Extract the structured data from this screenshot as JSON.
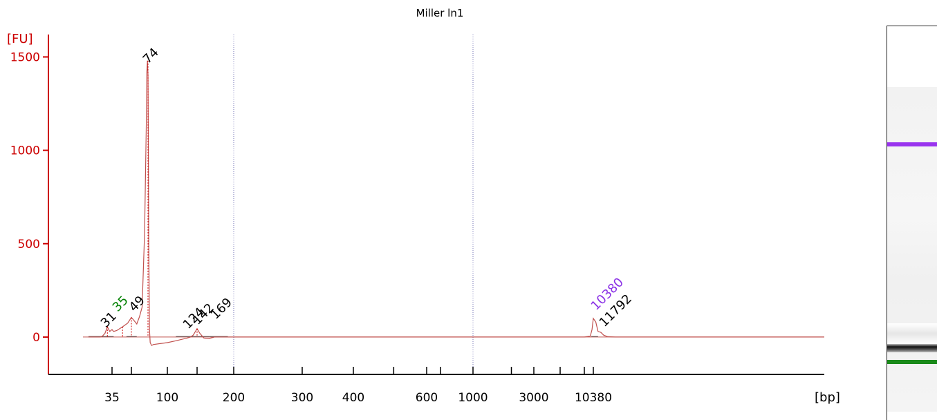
{
  "chart_data": {
    "type": "line",
    "title": "Miller ln1",
    "ylabel": "[FU]",
    "xlabel": "[bp]",
    "ylim": [
      -200,
      1620
    ],
    "y_ticks": [
      0,
      500,
      1000,
      1500
    ],
    "y_tick_labels": [
      "0",
      "500",
      "1000",
      "1500"
    ],
    "x_tick_labels": [
      "35",
      "100",
      "200",
      "300",
      "400",
      "600",
      "1000",
      "3000",
      "10380"
    ],
    "x_scale": "nonlinear (electrophoresis migration)",
    "grid": "vertical dotted lines at 200 and 1000 bp",
    "series": [
      {
        "color": "#c0504d",
        "x": [
          26,
          30,
          31,
          32,
          33,
          34,
          35,
          36,
          38,
          42,
          46,
          49,
          52,
          56,
          60,
          64,
          68,
          71,
          72,
          73,
          74,
          75,
          76,
          78,
          80,
          84,
          90,
          100,
          110,
          120,
          125,
          130,
          135,
          139,
          142,
          146,
          152,
          160,
          169,
          180,
          200,
          300,
          1000,
          3000,
          8000,
          9500,
          10000,
          10380,
          10700,
          11000,
          11400,
          11792,
          12500,
          14000,
          40000
        ],
        "y": [
          0,
          0,
          5,
          20,
          55,
          30,
          40,
          30,
          35,
          55,
          75,
          105,
          90,
          70,
          110,
          160,
          560,
          1150,
          1420,
          1480,
          1400,
          1050,
          500,
          40,
          -30,
          -45,
          -40,
          -30,
          -20,
          -10,
          -5,
          0,
          10,
          30,
          45,
          20,
          -5,
          -8,
          0,
          0,
          0,
          0,
          0,
          0,
          0,
          5,
          40,
          100,
          80,
          30,
          25,
          10,
          2,
          0,
          0
        ]
      }
    ],
    "peak_labels": [
      {
        "text": "31",
        "color": "#000000"
      },
      {
        "text": "35",
        "color": "#008000"
      },
      {
        "text": "49",
        "color": "#000000"
      },
      {
        "text": "74",
        "color": "#000000"
      },
      {
        "text": "124",
        "color": "#000000"
      },
      {
        "text": "142",
        "color": "#000000"
      },
      {
        "text": "169",
        "color": "#000000"
      },
      {
        "text": "10380",
        "color": "#8b32e6"
      },
      {
        "text": "11792",
        "color": "#000000"
      }
    ],
    "gel_bands": [
      {
        "label": "upper marker",
        "color": "#9933ee"
      },
      {
        "label": "sample",
        "color": "#222222"
      },
      {
        "label": "lower marker",
        "color": "#1a8a1a"
      }
    ]
  }
}
